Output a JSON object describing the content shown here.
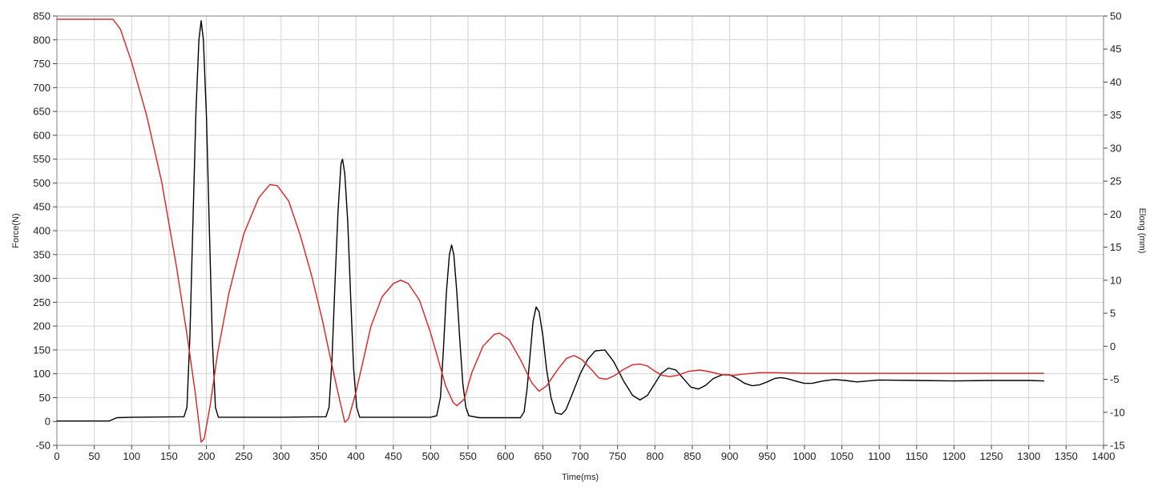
{
  "chart_data": {
    "type": "line",
    "xlabel": "Time(ms)",
    "ylabel_left": "Force(N)",
    "ylabel_right": "Elong (mm)",
    "xlim": [
      0,
      1400
    ],
    "ylim_left": [
      -50,
      850
    ],
    "ylim_right": [
      -15,
      50
    ],
    "x_ticks": [
      0,
      50,
      100,
      150,
      200,
      250,
      300,
      350,
      400,
      450,
      500,
      550,
      600,
      650,
      700,
      750,
      800,
      850,
      900,
      950,
      1000,
      1050,
      1100,
      1150,
      1200,
      1250,
      1300,
      1350,
      1400
    ],
    "y_left_ticks": [
      -50,
      0,
      50,
      100,
      150,
      200,
      250,
      300,
      350,
      400,
      450,
      500,
      550,
      600,
      650,
      700,
      750,
      800,
      850
    ],
    "y_right_ticks": [
      -15,
      -10,
      -5,
      0,
      5,
      10,
      15,
      20,
      25,
      30,
      35,
      40,
      45,
      50
    ],
    "grid": true,
    "series": [
      {
        "axis": "left",
        "color": "#000000",
        "points": [
          [
            0,
            1
          ],
          [
            70,
            1
          ],
          [
            80,
            8
          ],
          [
            100,
            9
          ],
          [
            170,
            10
          ],
          [
            174,
            30
          ],
          [
            178,
            180
          ],
          [
            182,
            420
          ],
          [
            186,
            650
          ],
          [
            190,
            800
          ],
          [
            193,
            840
          ],
          [
            196,
            800
          ],
          [
            200,
            640
          ],
          [
            204,
            400
          ],
          [
            208,
            170
          ],
          [
            212,
            30
          ],
          [
            216,
            9
          ],
          [
            300,
            9
          ],
          [
            360,
            10
          ],
          [
            364,
            30
          ],
          [
            368,
            130
          ],
          [
            372,
            290
          ],
          [
            376,
            440
          ],
          [
            380,
            540
          ],
          [
            382,
            550
          ],
          [
            385,
            520
          ],
          [
            389,
            420
          ],
          [
            393,
            260
          ],
          [
            397,
            110
          ],
          [
            401,
            30
          ],
          [
            405,
            9
          ],
          [
            500,
            9
          ],
          [
            508,
            12
          ],
          [
            513,
            50
          ],
          [
            517,
            150
          ],
          [
            521,
            270
          ],
          [
            525,
            350
          ],
          [
            528,
            370
          ],
          [
            531,
            350
          ],
          [
            535,
            270
          ],
          [
            539,
            170
          ],
          [
            543,
            80
          ],
          [
            547,
            30
          ],
          [
            551,
            12
          ],
          [
            565,
            8
          ],
          [
            620,
            8
          ],
          [
            625,
            20
          ],
          [
            629,
            70
          ],
          [
            633,
            140
          ],
          [
            637,
            210
          ],
          [
            641,
            240
          ],
          [
            645,
            230
          ],
          [
            650,
            180
          ],
          [
            655,
            110
          ],
          [
            661,
            50
          ],
          [
            667,
            18
          ],
          [
            675,
            15
          ],
          [
            681,
            25
          ],
          [
            690,
            60
          ],
          [
            700,
            100
          ],
          [
            710,
            130
          ],
          [
            720,
            148
          ],
          [
            733,
            150
          ],
          [
            745,
            125
          ],
          [
            758,
            85
          ],
          [
            770,
            55
          ],
          [
            780,
            45
          ],
          [
            790,
            55
          ],
          [
            800,
            80
          ],
          [
            808,
            100
          ],
          [
            818,
            112
          ],
          [
            828,
            108
          ],
          [
            838,
            90
          ],
          [
            848,
            72
          ],
          [
            858,
            68
          ],
          [
            868,
            76
          ],
          [
            878,
            90
          ],
          [
            890,
            98
          ],
          [
            900,
            98
          ],
          [
            910,
            90
          ],
          [
            920,
            80
          ],
          [
            930,
            75
          ],
          [
            940,
            77
          ],
          [
            950,
            83
          ],
          [
            960,
            90
          ],
          [
            968,
            92
          ],
          [
            976,
            90
          ],
          [
            990,
            84
          ],
          [
            1000,
            80
          ],
          [
            1010,
            80
          ],
          [
            1025,
            85
          ],
          [
            1040,
            88
          ],
          [
            1055,
            86
          ],
          [
            1070,
            83
          ],
          [
            1085,
            85
          ],
          [
            1100,
            87
          ],
          [
            1150,
            86
          ],
          [
            1200,
            85
          ],
          [
            1250,
            86
          ],
          [
            1300,
            86
          ],
          [
            1320,
            85
          ]
        ]
      },
      {
        "axis": "right",
        "color": "#e02020",
        "points": [
          [
            0,
            49.5
          ],
          [
            75,
            49.5
          ],
          [
            85,
            48
          ],
          [
            100,
            43
          ],
          [
            120,
            35
          ],
          [
            140,
            25
          ],
          [
            160,
            12
          ],
          [
            175,
            1
          ],
          [
            185,
            -7
          ],
          [
            193,
            -14.5
          ],
          [
            197,
            -14
          ],
          [
            205,
            -9
          ],
          [
            215,
            -1
          ],
          [
            230,
            8
          ],
          [
            250,
            17
          ],
          [
            270,
            22.5
          ],
          [
            285,
            24.5
          ],
          [
            295,
            24.3
          ],
          [
            310,
            22
          ],
          [
            325,
            17
          ],
          [
            340,
            11
          ],
          [
            355,
            4
          ],
          [
            370,
            -4
          ],
          [
            380,
            -9
          ],
          [
            385,
            -11.5
          ],
          [
            390,
            -11
          ],
          [
            400,
            -7
          ],
          [
            410,
            -2
          ],
          [
            420,
            3
          ],
          [
            435,
            7.5
          ],
          [
            450,
            9.5
          ],
          [
            460,
            10
          ],
          [
            470,
            9.5
          ],
          [
            485,
            7
          ],
          [
            500,
            2
          ],
          [
            510,
            -2
          ],
          [
            520,
            -6
          ],
          [
            530,
            -8.5
          ],
          [
            535,
            -9
          ],
          [
            545,
            -8
          ],
          [
            555,
            -4
          ],
          [
            570,
            0
          ],
          [
            585,
            1.8
          ],
          [
            592,
            2
          ],
          [
            605,
            1
          ],
          [
            620,
            -2
          ],
          [
            635,
            -5.5
          ],
          [
            645,
            -6.8
          ],
          [
            655,
            -6
          ],
          [
            670,
            -3.5
          ],
          [
            682,
            -1.8
          ],
          [
            692,
            -1.4
          ],
          [
            702,
            -2
          ],
          [
            715,
            -3.5
          ],
          [
            725,
            -4.8
          ],
          [
            735,
            -5
          ],
          [
            745,
            -4.5
          ],
          [
            758,
            -3.5
          ],
          [
            770,
            -2.8
          ],
          [
            780,
            -2.7
          ],
          [
            790,
            -3
          ],
          [
            800,
            -3.8
          ],
          [
            810,
            -4.4
          ],
          [
            820,
            -4.6
          ],
          [
            830,
            -4.4
          ],
          [
            845,
            -3.8
          ],
          [
            860,
            -3.6
          ],
          [
            875,
            -3.9
          ],
          [
            890,
            -4.3
          ],
          [
            905,
            -4.4
          ],
          [
            920,
            -4.2
          ],
          [
            940,
            -4
          ],
          [
            960,
            -4
          ],
          [
            1000,
            -4.1
          ],
          [
            1050,
            -4.1
          ],
          [
            1100,
            -4.1
          ],
          [
            1200,
            -4.1
          ],
          [
            1320,
            -4.1
          ]
        ]
      }
    ]
  }
}
